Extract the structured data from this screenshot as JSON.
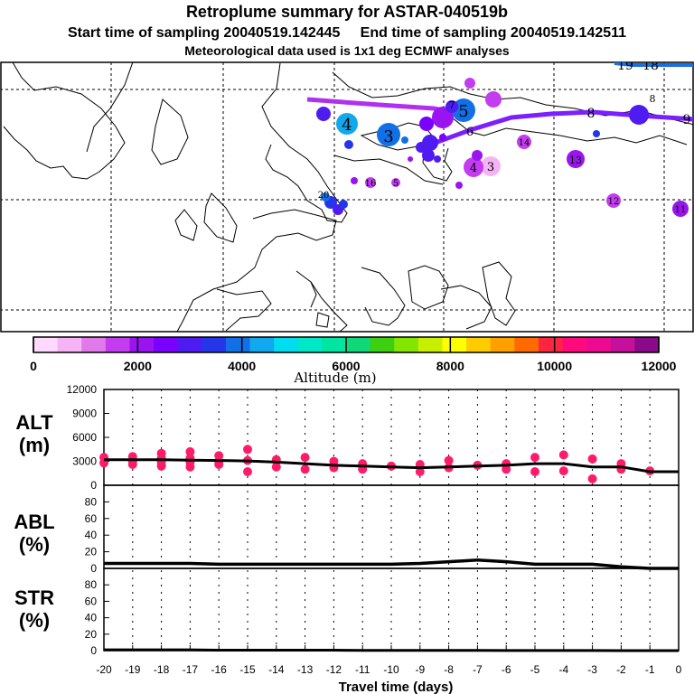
{
  "title": "Retroplume summary for ASTAR-040519b",
  "subtitle": "Start time of sampling 20040519.142445     End time of sampling 20040519.142511",
  "met_note": "Meteorological data used is 1x1 deg ECMWF analyses",
  "colorbar": {
    "label": "Altitude (m)",
    "tick_labels": [
      "0",
      "2000",
      "4000",
      "6000",
      "8000",
      "10000",
      "12000"
    ],
    "colors": [
      "#ffd9ff",
      "#f5b3f5",
      "#e07ae8",
      "#c43cf0",
      "#9a14f0",
      "#7a00ff",
      "#4e1cf0",
      "#2436e8",
      "#1270e6",
      "#12a8ee",
      "#00dcf0",
      "#00e8c8",
      "#00e6a0",
      "#10d878",
      "#3cd010",
      "#84e600",
      "#c8ee00",
      "#ffff00",
      "#ffcc00",
      "#ffa000",
      "#ff6a00",
      "#ff2440",
      "#ff0a7e",
      "#ee0a90",
      "#c4109a",
      "#8a0a8a"
    ]
  },
  "map": {
    "labels": [
      {
        "t": "19",
        "kind": "end"
      },
      {
        "t": "18",
        "kind": "end"
      },
      {
        "t": "4",
        "kind": "blob"
      },
      {
        "t": "3",
        "kind": "blob"
      },
      {
        "t": "5",
        "kind": "blob"
      },
      {
        "t": "8"
      },
      {
        "t": "9"
      },
      {
        "t": "8"
      },
      {
        "t": "6"
      },
      {
        "t": "7"
      },
      {
        "t": "13"
      },
      {
        "t": "12"
      },
      {
        "t": "11"
      },
      {
        "t": "14"
      },
      {
        "t": "3"
      },
      {
        "t": "4"
      },
      {
        "t": "16"
      },
      {
        "t": "5"
      },
      {
        "t": "20"
      }
    ]
  },
  "panels": {
    "alt": {
      "name": "ALT",
      "unit": "(m)"
    },
    "abl": {
      "name": "ABL",
      "unit": "(%)"
    },
    "str": {
      "name": "STR",
      "unit": "(%)"
    }
  },
  "xlabel": "Travel time (days)",
  "chart_data": [
    {
      "type": "line",
      "name": "ALT",
      "title": "Retroplume summary for ASTAR-040519b",
      "xlabel": "Travel time (days)",
      "ylabel": "ALT (m)",
      "xlim": [
        -20,
        0
      ],
      "ylim": [
        0,
        12000
      ],
      "x_ticks": [
        -20,
        -19,
        -18,
        -17,
        -16,
        -15,
        -14,
        -13,
        -12,
        -11,
        -10,
        -9,
        -8,
        -7,
        -6,
        -5,
        -4,
        -3,
        -2,
        -1,
        0
      ],
      "y_ticks": [
        0,
        3000,
        6000,
        9000,
        12000
      ],
      "series": [
        {
          "name": "mean altitude",
          "x": [
            -20,
            -19,
            -18,
            -17,
            -16,
            -15,
            -14,
            -13,
            -12,
            -11,
            -10,
            -9,
            -8,
            -7,
            -6,
            -5,
            -4,
            -3,
            -2,
            -1,
            0
          ],
          "y": [
            3200,
            3200,
            3200,
            3150,
            3100,
            3050,
            2900,
            2700,
            2500,
            2400,
            2300,
            2200,
            2300,
            2400,
            2500,
            2700,
            2700,
            2300,
            2300,
            1700,
            1700
          ]
        },
        {
          "name": "cluster altitudes",
          "x": [
            -20,
            -20,
            -19,
            -19,
            -19,
            -18,
            -18,
            -18,
            -18,
            -17,
            -17,
            -17,
            -17,
            -16,
            -16,
            -16,
            -15,
            -15,
            -15,
            -14,
            -14,
            -13,
            -13,
            -12,
            -12,
            -11,
            -11,
            -10,
            -9,
            -9,
            -8,
            -8,
            -7,
            -6,
            -6,
            -5,
            -5,
            -4,
            -4,
            -3,
            -3,
            -2,
            -2,
            -1
          ],
          "y": [
            3500,
            2800,
            3600,
            3000,
            2600,
            4000,
            3400,
            2900,
            2400,
            4200,
            3400,
            2900,
            2300,
            3700,
            3000,
            2600,
            4500,
            3100,
            1700,
            3200,
            2300,
            3500,
            2000,
            3000,
            2200,
            2700,
            2000,
            2400,
            2600,
            1700,
            3100,
            2200,
            2500,
            2700,
            2000,
            3500,
            1700,
            3800,
            1800,
            3300,
            800,
            2700,
            2000,
            1800
          ]
        }
      ]
    },
    {
      "type": "line",
      "name": "ABL",
      "xlabel": "Travel time (days)",
      "ylabel": "ABL (%)",
      "xlim": [
        -20,
        0
      ],
      "ylim": [
        0,
        100
      ],
      "y_ticks": [
        0,
        20,
        40,
        60,
        80
      ],
      "series": [
        {
          "name": "ABL fraction",
          "x": [
            -20,
            -19,
            -18,
            -17,
            -16,
            -15,
            -14,
            -13,
            -12,
            -11,
            -10,
            -9,
            -8,
            -7,
            -6,
            -5,
            -4,
            -3,
            -2,
            -1,
            0
          ],
          "y": [
            6,
            6,
            6,
            6,
            5,
            5,
            5,
            5,
            5,
            5,
            5,
            6,
            8,
            10,
            8,
            5,
            5,
            5,
            2,
            0,
            0
          ]
        }
      ]
    },
    {
      "type": "line",
      "name": "STR",
      "xlabel": "Travel time (days)",
      "ylabel": "STR (%)",
      "xlim": [
        -20,
        0
      ],
      "ylim": [
        0,
        100
      ],
      "y_ticks": [
        0,
        20,
        40,
        60,
        80
      ],
      "series": [
        {
          "name": "STR fraction",
          "x": [
            -20,
            -19,
            -18,
            -17,
            -16,
            -15,
            -14,
            -13,
            -12,
            -11,
            -10,
            -9,
            -8,
            -7,
            -6,
            -5,
            -4,
            -3,
            -2,
            -1,
            0
          ],
          "y": [
            1,
            1,
            1,
            1,
            0.5,
            0.5,
            0.5,
            0.5,
            0.5,
            0.3,
            0.3,
            0.2,
            0.2,
            0.2,
            0.1,
            0.1,
            0.1,
            0.1,
            0,
            0,
            0
          ]
        }
      ]
    }
  ]
}
